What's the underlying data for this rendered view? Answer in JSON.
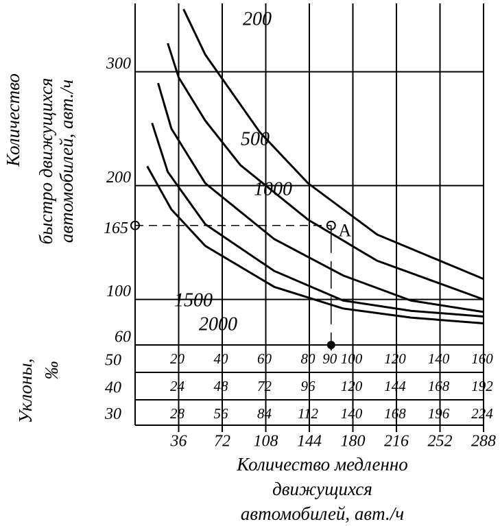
{
  "chart_data": {
    "type": "line",
    "y_label": [
      "Количество",
      "быстро движущихся",
      "автомобилей, авт./ч"
    ],
    "x_label": [
      "Количество медленно",
      "движущихся",
      "автомобилей, авт./ч"
    ],
    "grade_label": [
      "Уклоны,",
      "‰"
    ],
    "xlim": [
      0,
      288
    ],
    "xticks": [
      36,
      72,
      108,
      144,
      180,
      216,
      252,
      288
    ],
    "ylim": [
      60,
      360
    ],
    "yticks": [
      60,
      100,
      200,
      300
    ],
    "grid": true,
    "color": "#000000",
    "grade_scales": [
      {
        "label": "50",
        "xlim": [
          0,
          160
        ],
        "xticks": [
          20,
          40,
          60,
          80,
          90,
          100,
          120,
          140,
          160
        ]
      },
      {
        "label": "40",
        "xlim": [
          0,
          192
        ],
        "xticks": [
          24,
          48,
          72,
          96,
          120,
          144,
          168,
          192
        ]
      },
      {
        "label": "30",
        "xlim": [
          0,
          224
        ],
        "xticks": [
          28,
          56,
          84,
          112,
          140,
          168,
          196,
          224
        ]
      }
    ],
    "point": {
      "label": "A",
      "x": 162,
      "y": 165
    },
    "series": [
      {
        "name": "200",
        "x": [
          40,
          58,
          103,
          143,
          200,
          288
        ],
        "values": [
          355,
          315,
          247,
          202,
          157,
          118
        ]
      },
      {
        "name": "500",
        "x": [
          27,
          36,
          58,
          87,
          143,
          200,
          288
        ],
        "values": [
          325,
          295,
          257,
          218,
          170,
          134,
          100
        ]
      },
      {
        "name": "1000",
        "x": [
          19,
          30,
          58,
          115,
          172,
          228,
          288
        ],
        "values": [
          290,
          250,
          202,
          153,
          121,
          99,
          89
        ]
      },
      {
        "name": "1500",
        "x": [
          14,
          27,
          58,
          115,
          172,
          228,
          288
        ],
        "values": [
          255,
          212,
          166,
          125,
          99,
          90,
          85
        ]
      },
      {
        "name": "2000",
        "x": [
          10,
          30,
          58,
          115,
          172,
          228,
          288
        ],
        "values": [
          217,
          179,
          147,
          111,
          92,
          84,
          79
        ]
      }
    ]
  }
}
